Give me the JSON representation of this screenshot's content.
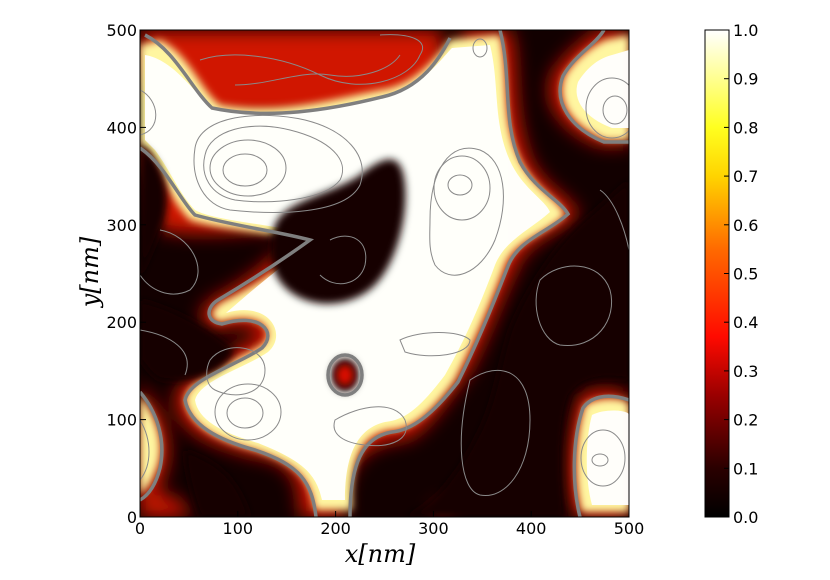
{
  "chart_data": {
    "type": "heatmap",
    "colormap": "hot",
    "xlabel": "x[nm]",
    "ylabel": "y[nm]",
    "xlim": [
      0,
      500
    ],
    "ylim": [
      0,
      500
    ],
    "x_ticks": [
      "0",
      "100",
      "200",
      "300",
      "400",
      "500"
    ],
    "y_ticks": [
      "0",
      "100",
      "200",
      "300",
      "400",
      "500"
    ],
    "colorbar": {
      "range": [
        0.0,
        1.0
      ],
      "ticks": [
        "0.0",
        "0.1",
        "0.2",
        "0.3",
        "0.4",
        "0.5",
        "0.6",
        "0.7",
        "0.8",
        "0.9",
        "1.0"
      ]
    },
    "contour_lines": true,
    "grid": false
  }
}
